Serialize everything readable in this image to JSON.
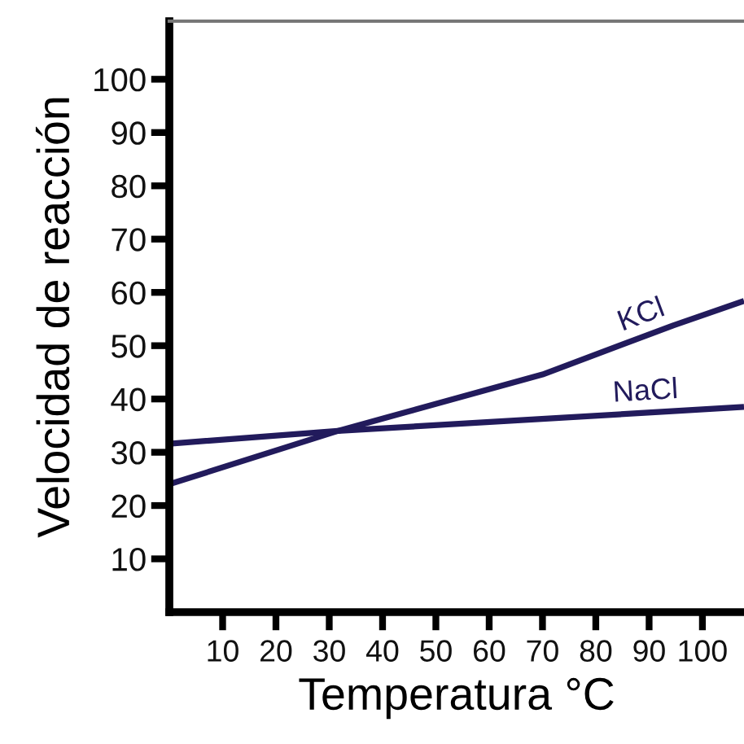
{
  "chart_data": {
    "type": "line",
    "xlabel": "Temperatura °C",
    "ylabel": "Velocidad de reacción",
    "xlim": [
      0,
      107.8
    ],
    "ylim": [
      0,
      110.9
    ],
    "xticks": [
      10,
      20,
      30,
      40,
      50,
      60,
      70,
      80,
      90,
      100
    ],
    "yticks": [
      10,
      20,
      30,
      40,
      50,
      60,
      70,
      80,
      90,
      100
    ],
    "grid": false,
    "legend": false,
    "marker": "none",
    "line_style": "solid",
    "series": [
      {
        "name": "KCl",
        "color": "#221b5c",
        "x": [
          0,
          31.6,
          70,
          94.5,
          107.8
        ],
        "values": [
          24,
          34,
          44.6,
          53.8,
          58.4
        ]
      },
      {
        "name": "NaCl",
        "color": "#221b5c",
        "x": [
          0,
          31.6,
          107.8
        ],
        "values": [
          31.6,
          34,
          38.5
        ]
      }
    ]
  }
}
